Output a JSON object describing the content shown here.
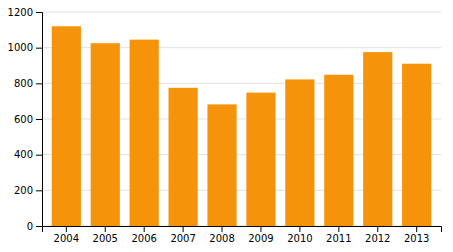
{
  "chart_data": {
    "type": "bar",
    "categories": [
      "2004",
      "2005",
      "2006",
      "2007",
      "2008",
      "2009",
      "2010",
      "2011",
      "2012",
      "2013"
    ],
    "values": [
      1120,
      1025,
      1045,
      775,
      682,
      748,
      822,
      848,
      975,
      910
    ],
    "color": "#F5930A",
    "ylim": [
      0,
      1200
    ],
    "yticks": [
      0,
      200,
      400,
      600,
      800,
      1000,
      1200
    ],
    "grid": true
  }
}
